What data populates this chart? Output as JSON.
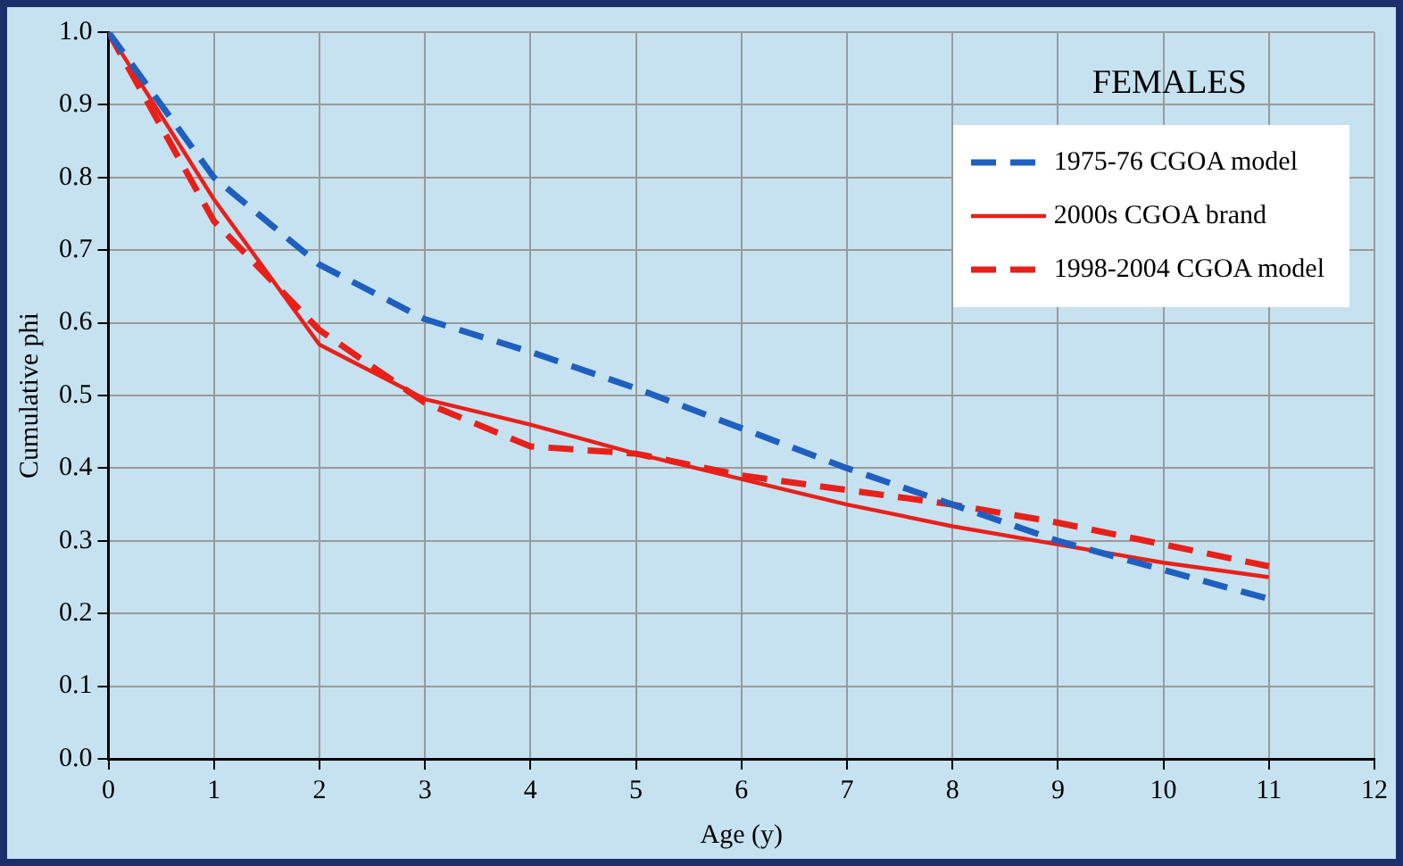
{
  "chart_data": {
    "type": "line",
    "xlabel": "Age (y)",
    "ylabel": "Cumulative phi",
    "legend_title": "FEMALES",
    "x": [
      0,
      1,
      2,
      3,
      4,
      5,
      6,
      7,
      8,
      9,
      10,
      11
    ],
    "series": [
      {
        "name": "1975-76 CGOA model",
        "color": "#1f5fbf",
        "line_style": "dashed",
        "values": [
          1.0,
          0.8,
          0.68,
          0.605,
          0.56,
          0.51,
          0.455,
          0.4,
          0.35,
          0.3,
          0.26,
          0.22
        ]
      },
      {
        "name": "2000s CGOA brand",
        "color": "#e8201a",
        "line_style": "solid",
        "values": [
          1.0,
          0.77,
          0.57,
          0.495,
          0.46,
          0.42,
          0.385,
          0.35,
          0.32,
          0.295,
          0.27,
          0.25
        ]
      },
      {
        "name": "1998-2004 CGOA model",
        "color": "#e8201a",
        "line_style": "dashed",
        "values": [
          1.0,
          0.74,
          0.59,
          0.49,
          0.43,
          0.42,
          0.39,
          0.37,
          0.35,
          0.325,
          0.295,
          0.265
        ]
      }
    ],
    "xlim": [
      0,
      12
    ],
    "xticks": [
      0,
      1,
      2,
      3,
      4,
      5,
      6,
      7,
      8,
      9,
      10,
      11,
      12
    ],
    "ylim": [
      0,
      1
    ],
    "yticks": [
      {
        "value": 0,
        "label": "0.0"
      },
      {
        "value": 0.1,
        "label": "0.1"
      },
      {
        "value": 0.2,
        "label": "0.2"
      },
      {
        "value": 0.3,
        "label": "0.3"
      },
      {
        "value": 0.4,
        "label": "0.4"
      },
      {
        "value": 0.5,
        "label": "0.5"
      },
      {
        "value": 0.6,
        "label": "0.6"
      },
      {
        "value": 0.7,
        "label": "0.7"
      },
      {
        "value": 0.8,
        "label": "0.8"
      },
      {
        "value": 0.9,
        "label": "0.9"
      },
      {
        "value": 1,
        "label": "1.0"
      }
    ],
    "grid": true,
    "legend": "top right",
    "marker": "none"
  }
}
